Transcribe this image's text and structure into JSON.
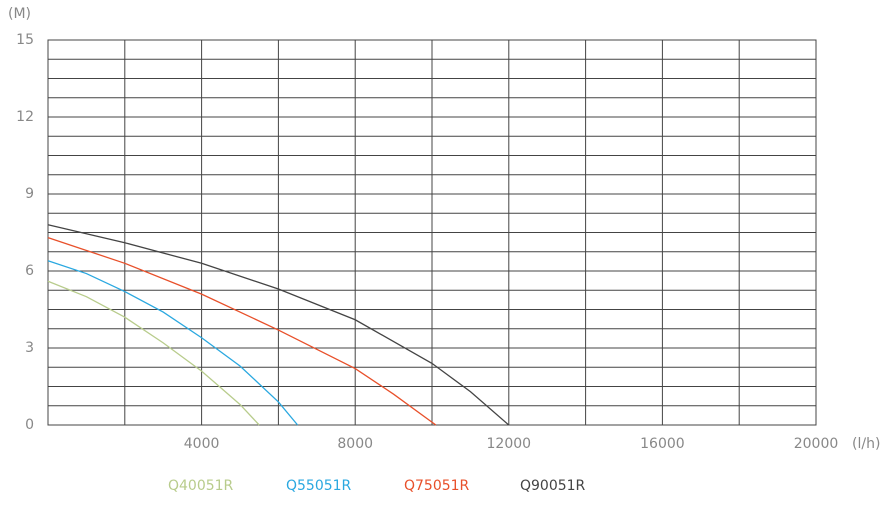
{
  "chart_data": {
    "type": "line",
    "y_label": "(M)",
    "x_label": "(l/h)",
    "xlim": [
      0,
      20000
    ],
    "ylim": [
      0,
      15
    ],
    "xticks": [
      4000,
      8000,
      12000,
      16000,
      20000
    ],
    "xminorticks": [
      2000,
      6000,
      10000,
      14000,
      18000
    ],
    "yticks": [
      0,
      3,
      6,
      9,
      12,
      15
    ],
    "yminorticks": [
      0.75,
      1.5,
      2.25,
      3.75,
      4.5,
      5.25,
      6.75,
      7.5,
      8.25,
      9.75,
      10.5,
      11.25,
      12.75,
      13.5,
      14.25
    ],
    "grid": true,
    "series": [
      {
        "name": "Q40051R",
        "color": "#b8cc8c",
        "x": [
          0,
          1000,
          2000,
          3000,
          4000,
          5000,
          5500
        ],
        "values": [
          5.6,
          5.0,
          4.2,
          3.2,
          2.1,
          0.8,
          0
        ]
      },
      {
        "name": "Q55051R",
        "color": "#2aa8e0",
        "x": [
          0,
          1000,
          2000,
          3000,
          4000,
          5000,
          6000,
          6500
        ],
        "values": [
          6.4,
          5.9,
          5.2,
          4.4,
          3.4,
          2.3,
          0.9,
          0
        ]
      },
      {
        "name": "Q75051R",
        "color": "#e8502a",
        "x": [
          0,
          2000,
          4000,
          6000,
          8000,
          9000,
          10100
        ],
        "values": [
          7.3,
          6.3,
          5.1,
          3.7,
          2.2,
          1.2,
          0
        ]
      },
      {
        "name": "Q90051R",
        "color": "#444444",
        "x": [
          0,
          2000,
          4000,
          6000,
          8000,
          10000,
          11000,
          12000
        ],
        "values": [
          7.8,
          7.1,
          6.3,
          5.3,
          4.1,
          2.4,
          1.3,
          0
        ]
      }
    ]
  }
}
